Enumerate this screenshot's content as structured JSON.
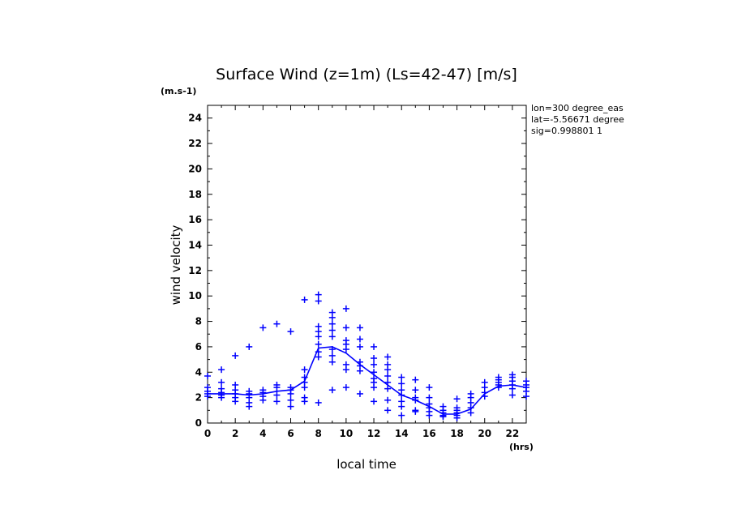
{
  "chart_data": {
    "type": "scatter",
    "title": "Surface Wind (z=1m) (Ls=42-47) [m/s]",
    "y_unit": "(m.s-1)",
    "x_unit": "(hrs)",
    "xlabel": "local time",
    "ylabel": "wind velocity",
    "xlim": [
      0,
      23
    ],
    "ylim": [
      0,
      25
    ],
    "x_ticks": [
      "0",
      "2",
      "4",
      "6",
      "8",
      "10",
      "12",
      "14",
      "16",
      "18",
      "20",
      "22"
    ],
    "y_ticks": [
      "0",
      "2",
      "4",
      "6",
      "8",
      "10",
      "12",
      "14",
      "16",
      "18",
      "20",
      "22",
      "24"
    ],
    "info_lines": [
      "lon=300 degree_eas",
      "lat=-5.56671 degree",
      "sig=0.998801 1"
    ],
    "color": "#0000ff",
    "mean_line": {
      "x": [
        0,
        1,
        2,
        3,
        4,
        5,
        6,
        7,
        8,
        9,
        10,
        11,
        12,
        13,
        14,
        15,
        16,
        17,
        18,
        19,
        20,
        21,
        22,
        23
      ],
      "y": [
        2.3,
        2.3,
        2.3,
        2.2,
        2.3,
        2.5,
        2.6,
        3.3,
        5.9,
        6.0,
        5.5,
        4.6,
        3.8,
        3.0,
        2.2,
        1.8,
        1.3,
        0.7,
        0.7,
        1.1,
        2.3,
        2.9,
        3.0,
        2.8
      ]
    },
    "points": [
      [
        0,
        2.1
      ],
      [
        0,
        2.3
      ],
      [
        0,
        2.5
      ],
      [
        0,
        2.8
      ],
      [
        0,
        3.7
      ],
      [
        1,
        2.0
      ],
      [
        1,
        2.2
      ],
      [
        1,
        2.4
      ],
      [
        1,
        2.7
      ],
      [
        1,
        3.2
      ],
      [
        1,
        4.2
      ],
      [
        2,
        1.7
      ],
      [
        2,
        2.0
      ],
      [
        2,
        2.3
      ],
      [
        2,
        2.6
      ],
      [
        2,
        3.0
      ],
      [
        2,
        5.3
      ],
      [
        3,
        1.3
      ],
      [
        3,
        1.6
      ],
      [
        3,
        2.0
      ],
      [
        3,
        2.3
      ],
      [
        3,
        2.5
      ],
      [
        3,
        6.0
      ],
      [
        4,
        1.8
      ],
      [
        4,
        2.1
      ],
      [
        4,
        2.4
      ],
      [
        4,
        2.6
      ],
      [
        4,
        7.5
      ],
      [
        5,
        1.7
      ],
      [
        5,
        2.2
      ],
      [
        5,
        2.8
      ],
      [
        5,
        3.0
      ],
      [
        5,
        7.8
      ],
      [
        6,
        1.3
      ],
      [
        6,
        1.8
      ],
      [
        6,
        2.3
      ],
      [
        6,
        2.6
      ],
      [
        6,
        2.8
      ],
      [
        6,
        7.2
      ],
      [
        7,
        1.7
      ],
      [
        7,
        2.0
      ],
      [
        7,
        2.8
      ],
      [
        7,
        3.2
      ],
      [
        7,
        3.6
      ],
      [
        7,
        4.2
      ],
      [
        7,
        9.7
      ],
      [
        8,
        1.6
      ],
      [
        8,
        5.2
      ],
      [
        8,
        5.6
      ],
      [
        8,
        6.2
      ],
      [
        8,
        6.8
      ],
      [
        8,
        7.2
      ],
      [
        8,
        7.6
      ],
      [
        8,
        9.6
      ],
      [
        8,
        10.1
      ],
      [
        9,
        2.6
      ],
      [
        9,
        4.8
      ],
      [
        9,
        5.3
      ],
      [
        9,
        5.8
      ],
      [
        9,
        6.8
      ],
      [
        9,
        7.3
      ],
      [
        9,
        7.8
      ],
      [
        9,
        8.3
      ],
      [
        9,
        8.7
      ],
      [
        10,
        2.8
      ],
      [
        10,
        4.2
      ],
      [
        10,
        4.6
      ],
      [
        10,
        5.8
      ],
      [
        10,
        6.2
      ],
      [
        10,
        6.5
      ],
      [
        10,
        7.5
      ],
      [
        10,
        9.0
      ],
      [
        11,
        2.3
      ],
      [
        11,
        4.1
      ],
      [
        11,
        4.5
      ],
      [
        11,
        4.8
      ],
      [
        11,
        6.0
      ],
      [
        11,
        6.6
      ],
      [
        11,
        7.5
      ],
      [
        12,
        1.7
      ],
      [
        12,
        2.8
      ],
      [
        12,
        3.2
      ],
      [
        12,
        3.5
      ],
      [
        12,
        4.0
      ],
      [
        12,
        4.6
      ],
      [
        12,
        5.1
      ],
      [
        12,
        6.0
      ],
      [
        13,
        1.0
      ],
      [
        13,
        1.8
      ],
      [
        13,
        2.7
      ],
      [
        13,
        3.2
      ],
      [
        13,
        3.7
      ],
      [
        13,
        4.2
      ],
      [
        13,
        4.6
      ],
      [
        13,
        5.2
      ],
      [
        14,
        0.6
      ],
      [
        14,
        1.3
      ],
      [
        14,
        1.7
      ],
      [
        14,
        2.2
      ],
      [
        14,
        2.6
      ],
      [
        14,
        3.1
      ],
      [
        14,
        3.6
      ],
      [
        15,
        0.9
      ],
      [
        15,
        1.0
      ],
      [
        15,
        1.8
      ],
      [
        15,
        2.0
      ],
      [
        15,
        2.6
      ],
      [
        15,
        3.4
      ],
      [
        16,
        0.6
      ],
      [
        16,
        0.9
      ],
      [
        16,
        1.2
      ],
      [
        16,
        1.5
      ],
      [
        16,
        2.0
      ],
      [
        16,
        2.8
      ],
      [
        17,
        0.5
      ],
      [
        17,
        0.6
      ],
      [
        17,
        0.8
      ],
      [
        17,
        1.0
      ],
      [
        17,
        1.3
      ],
      [
        18,
        0.4
      ],
      [
        18,
        0.6
      ],
      [
        18,
        0.8
      ],
      [
        18,
        1.0
      ],
      [
        18,
        1.2
      ],
      [
        18,
        1.9
      ],
      [
        19,
        0.8
      ],
      [
        19,
        1.2
      ],
      [
        19,
        1.6
      ],
      [
        19,
        2.0
      ],
      [
        19,
        2.3
      ],
      [
        20,
        2.1
      ],
      [
        20,
        2.4
      ],
      [
        20,
        2.8
      ],
      [
        20,
        3.2
      ],
      [
        21,
        2.8
      ],
      [
        21,
        3.0
      ],
      [
        21,
        3.2
      ],
      [
        21,
        3.4
      ],
      [
        21,
        3.6
      ],
      [
        22,
        2.2
      ],
      [
        22,
        2.7
      ],
      [
        22,
        3.0
      ],
      [
        22,
        3.3
      ],
      [
        22,
        3.6
      ],
      [
        22,
        3.8
      ],
      [
        23,
        2.1
      ],
      [
        23,
        2.5
      ],
      [
        23,
        2.8
      ],
      [
        23,
        3.0
      ],
      [
        23,
        3.3
      ]
    ]
  }
}
